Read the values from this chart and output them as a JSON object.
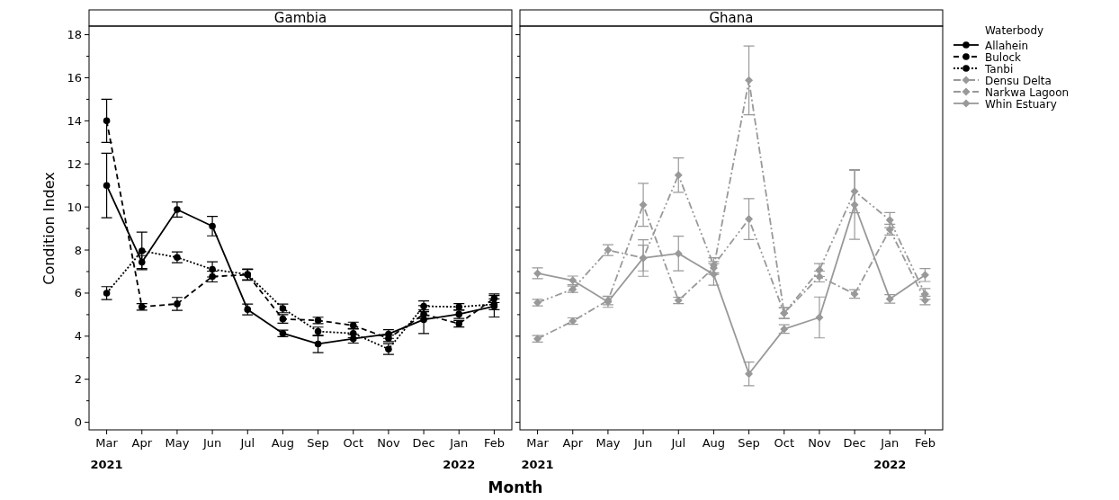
{
  "chart_data": [
    {
      "type": "line",
      "title": "Gambia",
      "xlabel": "Month",
      "ylabel": "Condition Index",
      "categories": [
        "Mar",
        "Apr",
        "May",
        "Jun",
        "Jul",
        "Aug",
        "Sep",
        "Oct",
        "Nov",
        "Dec",
        "Jan",
        "Feb"
      ],
      "ylim": [
        -0.35,
        18.4
      ],
      "yticks": [
        0,
        {
          "value": 1,
          "label": null
        },
        2,
        {
          "value": 3,
          "label": null
        },
        4,
        {
          "value": 5,
          "label": null
        },
        6,
        {
          "value": 7,
          "label": null
        },
        8,
        {
          "value": 9,
          "label": null
        },
        10,
        {
          "value": 11,
          "label": null
        },
        12,
        {
          "value": 13,
          "label": null
        },
        14,
        {
          "value": 15,
          "label": null
        },
        16,
        {
          "value": 17,
          "label": null
        },
        18
      ],
      "marker": "circle",
      "legend": "right",
      "legend_title": "Waterbody",
      "annotations": [
        "2021",
        "2022"
      ],
      "series": [
        {
          "name": "Allahein",
          "color": "#000000",
          "line_style": "solid",
          "values": [
            11,
            7.44,
            9.88,
            9.11,
            5.24,
            4.13,
            3.64,
            3.88,
            4.1,
            4.77,
            5.02,
            5.39
          ],
          "errors": [
            1.5,
            0.3,
            0.35,
            0.45,
            0.25,
            0.15,
            0.4,
            0.2,
            0.2,
            0.65,
            0.2,
            0.5
          ]
        },
        {
          "name": "Bulock",
          "color": "#000000",
          "line_style": "dashed",
          "values": [
            14,
            5.36,
            5.5,
            6.77,
            6.85,
            4.8,
            4.73,
            4.5,
            3.9,
            5.02,
            4.58,
            5.76
          ],
          "errors": [
            1,
            0.15,
            0.3,
            0.25,
            0.25,
            0.2,
            0.15,
            0.15,
            0.15,
            0.2,
            0.15,
            0.2
          ]
        },
        {
          "name": "Tanbi",
          "color": "#000000",
          "line_style": "dotted",
          "values": [
            6,
            7.96,
            7.66,
            7.1,
            6.87,
            5.29,
            4.22,
            4.13,
            3.4,
            5.39,
            5.36,
            5.48
          ],
          "errors": [
            0.3,
            0.87,
            0.25,
            0.35,
            0.25,
            0.2,
            0.2,
            0.2,
            0.25,
            0.25,
            0.15,
            0.25
          ]
        }
      ]
    },
    {
      "type": "line",
      "title": "Ghana",
      "categories": [
        "Mar",
        "Apr",
        "May",
        "Jun",
        "Jul",
        "Aug",
        "Sep",
        "Oct",
        "Nov",
        "Dec",
        "Jan",
        "Feb"
      ],
      "ylim": [
        -0.35,
        18.4
      ],
      "yticks": [
        0,
        {
          "value": 1,
          "label": null
        },
        2,
        {
          "value": 3,
          "label": null
        },
        4,
        {
          "value": 5,
          "label": null
        },
        6,
        {
          "value": 7,
          "label": null
        },
        8,
        {
          "value": 9,
          "label": null
        },
        10,
        {
          "value": 11,
          "label": null
        },
        12,
        {
          "value": 13,
          "label": null
        },
        14,
        {
          "value": 15,
          "label": null
        },
        16,
        {
          "value": 17,
          "label": null
        },
        18
      ],
      "tick_labels": "x",
      "marker": "diamond",
      "legend": "right",
      "annotations": [
        "2021",
        "2022"
      ],
      "series": [
        {
          "name": "Densu Delta",
          "color": "#999999",
          "line_style": "dashdot",
          "values": [
            3.88,
            4.7,
            5.66,
            10.1,
            5.66,
            7.17,
            15.88,
            5.07,
            6.77,
            5.96,
            8.95,
            5.66
          ],
          "errors": [
            0.15,
            0.15,
            0.2,
            1,
            0.15,
            0.3,
            1.6,
            0.25,
            0.25,
            0.2,
            0.25,
            0.2
          ]
        },
        {
          "name": "Narkwa Lagoon",
          "color": "#999999",
          "line_style": "dashdotdot",
          "values": [
            5.56,
            6.18,
            8,
            7.63,
            11.48,
            7.29,
            9.44,
            5.07,
            7.07,
            10.73,
            9.39,
            5.96
          ],
          "errors": [
            0.15,
            0.15,
            0.25,
            0.6,
            0.8,
            0.35,
            0.95,
            0.25,
            0.3,
            1,
            0.35,
            0.25
          ]
        },
        {
          "name": "Whin Estuary",
          "color": "#999999",
          "line_style": "solid",
          "values": [
            6.92,
            6.59,
            5.59,
            7.63,
            7.84,
            6.87,
            2.25,
            4.33,
            4.87,
            10.1,
            5.73,
            6.84
          ],
          "errors": [
            0.25,
            0.2,
            0.25,
            0.85,
            0.8,
            0.5,
            0.55,
            0.2,
            0.95,
            1.6,
            0.2,
            0.3
          ]
        }
      ]
    }
  ]
}
